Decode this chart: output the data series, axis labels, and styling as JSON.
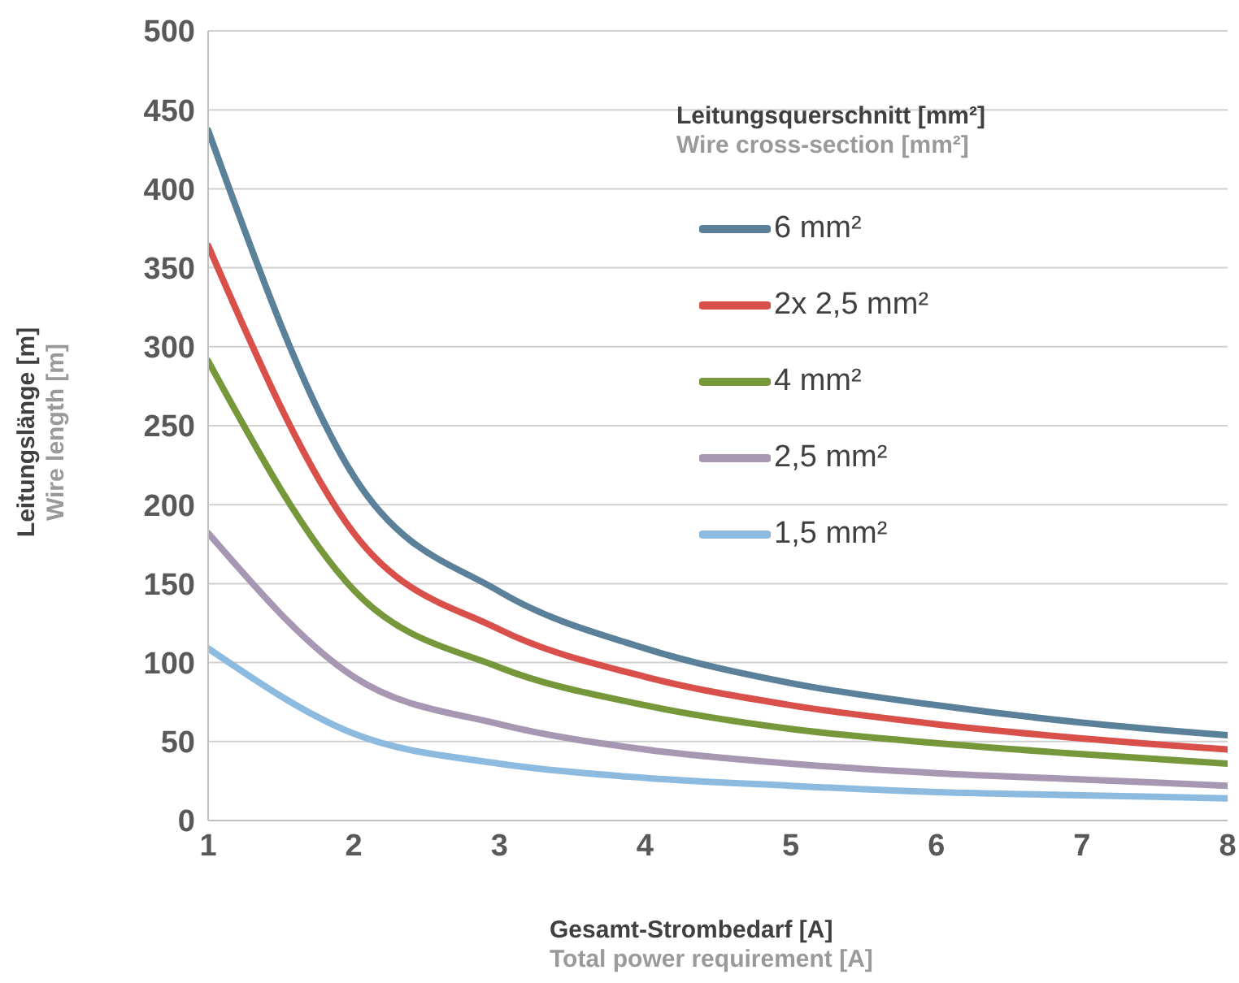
{
  "chart_data": {
    "type": "line",
    "xlabel": "Gesamt-Strombedarf [A]\nTotal power requirement [A]",
    "ylabel": "Leitungslänge [m]\nWire length [m]",
    "legend_title": "Leitungsquerschnitt [mm²]\nWire cross-section [mm²]",
    "x": [
      1,
      2,
      3,
      4,
      5,
      6,
      7,
      8
    ],
    "xlim": [
      1,
      8
    ],
    "xticks": [
      1,
      2,
      3,
      4,
      5,
      6,
      7,
      8
    ],
    "ylim": [
      0,
      500
    ],
    "yticks": [
      0,
      50,
      100,
      150,
      200,
      250,
      300,
      350,
      400,
      450,
      500
    ],
    "grid": "y",
    "legend": "top right",
    "marker": "none",
    "line_style": "solid",
    "series": [
      {
        "name": "6 mm²",
        "color": "#5a8199",
        "values": [
          437,
          218,
          145,
          109,
          87,
          73,
          62,
          54
        ]
      },
      {
        "name": "2x 2,5 mm²",
        "color": "#d9504a",
        "values": [
          364,
          182,
          121,
          91,
          73,
          61,
          52,
          45
        ]
      },
      {
        "name": "4 mm²",
        "color": "#76983b",
        "values": [
          291,
          146,
          97,
          73,
          58,
          49,
          42,
          36
        ]
      },
      {
        "name": "2,5 mm²",
        "color": "#a797b3",
        "values": [
          182,
          91,
          61,
          45,
          36,
          30,
          26,
          22
        ]
      },
      {
        "name": "1,5 mm²",
        "color": "#8cbbdf",
        "values": [
          109,
          55,
          36,
          27,
          22,
          18,
          16,
          14
        ]
      }
    ]
  }
}
